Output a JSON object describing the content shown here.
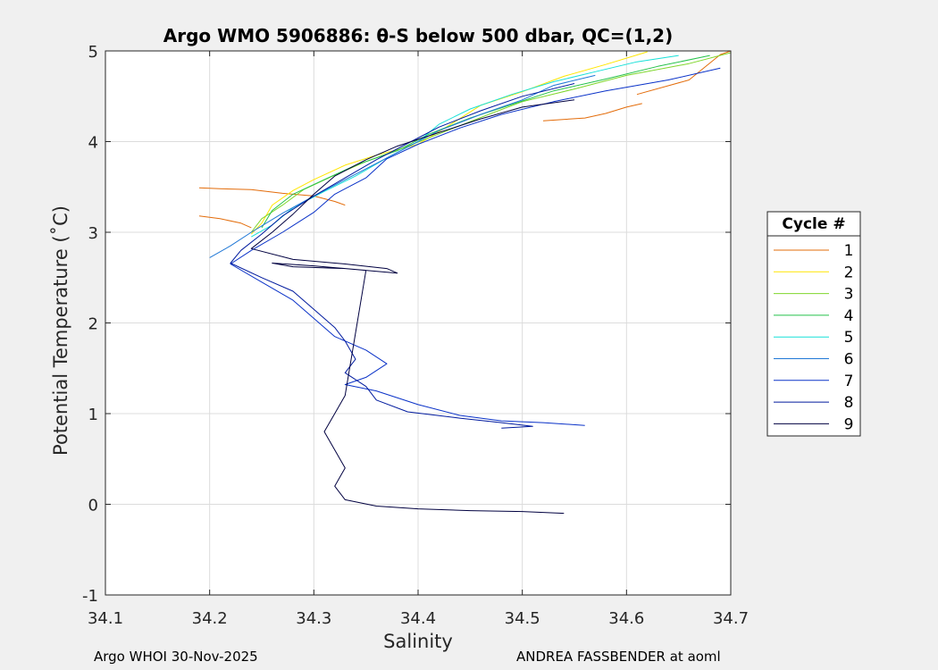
{
  "chart_data": {
    "type": "line",
    "title": "Argo WMO 5906886: θ-S below 500 dbar,  QC=(1,2)",
    "xlabel": "Salinity",
    "ylabel": "Potential Temperature (˚C)",
    "xlim": [
      34.1,
      34.7
    ],
    "ylim": [
      -1,
      5
    ],
    "xticks": [
      "34.1",
      "34.2",
      "34.3",
      "34.4",
      "34.5",
      "34.6",
      "34.7"
    ],
    "yticks": [
      "-1",
      "0",
      "1",
      "2",
      "3",
      "4",
      "5"
    ],
    "grid": true,
    "legend_title": "Cycle #",
    "legend_position": "right",
    "series": [
      {
        "name": "1",
        "color": "#e36c0a",
        "points": [
          [
            34.61,
            4.52
          ],
          [
            34.66,
            4.68
          ],
          [
            34.69,
            4.96
          ],
          [
            34.7,
            5.0
          ]
        ]
      },
      {
        "name": "1",
        "color": "#e36c0a",
        "points": [
          [
            34.52,
            4.23
          ],
          [
            34.56,
            4.26
          ],
          [
            34.58,
            4.31
          ],
          [
            34.6,
            4.38
          ],
          [
            34.615,
            4.42
          ]
        ]
      },
      {
        "name": "1",
        "color": "#e36c0a",
        "points": [
          [
            34.19,
            3.49
          ],
          [
            34.21,
            3.48
          ],
          [
            34.24,
            3.47
          ],
          [
            34.27,
            3.43
          ],
          [
            34.3,
            3.4
          ],
          [
            34.32,
            3.34
          ],
          [
            34.33,
            3.3
          ]
        ]
      },
      {
        "name": "1",
        "color": "#e36c0a",
        "points": [
          [
            34.19,
            3.18
          ],
          [
            34.21,
            3.15
          ],
          [
            34.23,
            3.1
          ],
          [
            34.24,
            3.05
          ]
        ]
      },
      {
        "name": "2",
        "color": "#ffe600",
        "points": [
          [
            34.62,
            4.99
          ],
          [
            34.58,
            4.85
          ],
          [
            34.54,
            4.72
          ],
          [
            34.5,
            4.55
          ],
          [
            34.46,
            4.4
          ],
          [
            34.43,
            4.18
          ],
          [
            34.4,
            3.97
          ],
          [
            34.36,
            3.85
          ],
          [
            34.33,
            3.74
          ],
          [
            34.3,
            3.58
          ],
          [
            34.28,
            3.46
          ],
          [
            34.26,
            3.3
          ],
          [
            34.25,
            3.1
          ],
          [
            34.24,
            2.98
          ]
        ]
      },
      {
        "name": "3",
        "color": "#7fd62b",
        "points": [
          [
            34.7,
            4.98
          ],
          [
            34.66,
            4.86
          ],
          [
            34.6,
            4.73
          ],
          [
            34.55,
            4.58
          ],
          [
            34.5,
            4.44
          ],
          [
            34.47,
            4.31
          ],
          [
            34.43,
            4.13
          ],
          [
            34.39,
            3.95
          ],
          [
            34.35,
            3.78
          ],
          [
            34.32,
            3.63
          ],
          [
            34.29,
            3.47
          ],
          [
            34.27,
            3.3
          ],
          [
            34.25,
            3.15
          ],
          [
            34.24,
            3.0
          ]
        ]
      },
      {
        "name": "4",
        "color": "#25c24a",
        "points": [
          [
            34.68,
            4.95
          ],
          [
            34.63,
            4.83
          ],
          [
            34.58,
            4.69
          ],
          [
            34.53,
            4.56
          ],
          [
            34.49,
            4.41
          ],
          [
            34.45,
            4.26
          ],
          [
            34.41,
            4.08
          ],
          [
            34.38,
            3.9
          ],
          [
            34.34,
            3.74
          ],
          [
            34.31,
            3.58
          ],
          [
            34.28,
            3.42
          ],
          [
            34.26,
            3.24
          ],
          [
            34.25,
            3.05
          ]
        ]
      },
      {
        "name": "5",
        "color": "#17e0d8",
        "points": [
          [
            34.65,
            4.95
          ],
          [
            34.61,
            4.88
          ],
          [
            34.57,
            4.77
          ],
          [
            34.53,
            4.66
          ],
          [
            34.49,
            4.52
          ],
          [
            34.45,
            4.36
          ],
          [
            34.42,
            4.19
          ],
          [
            34.4,
            4.0
          ],
          [
            34.37,
            3.82
          ],
          [
            34.34,
            3.62
          ],
          [
            34.31,
            3.45
          ],
          [
            34.28,
            3.27
          ],
          [
            34.26,
            3.08
          ],
          [
            34.24,
            2.95
          ]
        ]
      },
      {
        "name": "6",
        "color": "#1f77d6",
        "points": [
          [
            34.57,
            4.73
          ],
          [
            34.53,
            4.62
          ],
          [
            34.5,
            4.46
          ],
          [
            34.46,
            4.3
          ],
          [
            34.42,
            4.12
          ],
          [
            34.39,
            3.94
          ],
          [
            34.36,
            3.76
          ],
          [
            34.33,
            3.58
          ],
          [
            34.3,
            3.4
          ],
          [
            34.27,
            3.21
          ],
          [
            34.24,
            3.0
          ],
          [
            34.22,
            2.85
          ],
          [
            34.2,
            2.72
          ]
        ]
      },
      {
        "name": "7",
        "color": "#0a32c8",
        "points": [
          [
            34.69,
            4.81
          ],
          [
            34.64,
            4.68
          ],
          [
            34.58,
            4.56
          ],
          [
            34.53,
            4.44
          ],
          [
            34.48,
            4.3
          ],
          [
            34.44,
            4.15
          ],
          [
            34.4,
            3.97
          ],
          [
            34.37,
            3.81
          ],
          [
            34.35,
            3.6
          ],
          [
            34.32,
            3.42
          ],
          [
            34.3,
            3.22
          ],
          [
            34.27,
            3.0
          ],
          [
            34.24,
            2.8
          ],
          [
            34.22,
            2.65
          ],
          [
            34.25,
            2.45
          ],
          [
            34.28,
            2.25
          ],
          [
            34.3,
            2.05
          ],
          [
            34.32,
            1.85
          ],
          [
            34.35,
            1.7
          ],
          [
            34.37,
            1.55
          ],
          [
            34.35,
            1.4
          ],
          [
            34.33,
            1.32
          ],
          [
            34.36,
            1.25
          ],
          [
            34.4,
            1.1
          ],
          [
            34.44,
            0.98
          ],
          [
            34.48,
            0.92
          ],
          [
            34.52,
            0.9
          ],
          [
            34.56,
            0.87
          ]
        ]
      },
      {
        "name": "8",
        "color": "#001a9e",
        "points": [
          [
            34.55,
            4.64
          ],
          [
            34.5,
            4.5
          ],
          [
            34.46,
            4.34
          ],
          [
            34.42,
            4.16
          ],
          [
            34.39,
            3.98
          ],
          [
            34.36,
            3.8
          ],
          [
            34.33,
            3.6
          ],
          [
            34.3,
            3.4
          ],
          [
            34.27,
            3.18
          ],
          [
            34.25,
            2.98
          ],
          [
            34.23,
            2.8
          ],
          [
            34.22,
            2.66
          ],
          [
            34.25,
            2.5
          ],
          [
            34.28,
            2.35
          ],
          [
            34.3,
            2.15
          ],
          [
            34.32,
            1.95
          ],
          [
            34.33,
            1.8
          ],
          [
            34.34,
            1.6
          ],
          [
            34.33,
            1.45
          ],
          [
            34.35,
            1.3
          ],
          [
            34.36,
            1.15
          ],
          [
            34.39,
            1.02
          ],
          [
            34.44,
            0.95
          ],
          [
            34.48,
            0.9
          ],
          [
            34.51,
            0.86
          ],
          [
            34.48,
            0.84
          ]
        ]
      },
      {
        "name": "9",
        "color": "#000040",
        "points": [
          [
            34.55,
            4.46
          ],
          [
            34.5,
            4.38
          ],
          [
            34.46,
            4.25
          ],
          [
            34.42,
            4.1
          ],
          [
            34.38,
            3.95
          ],
          [
            34.35,
            3.8
          ],
          [
            34.32,
            3.62
          ],
          [
            34.3,
            3.42
          ],
          [
            34.28,
            3.2
          ],
          [
            34.26,
            3.0
          ],
          [
            34.24,
            2.82
          ],
          [
            34.28,
            2.7
          ],
          [
            34.33,
            2.65
          ],
          [
            34.37,
            2.6
          ],
          [
            34.38,
            2.55
          ],
          [
            34.33,
            2.6
          ],
          [
            34.28,
            2.62
          ],
          [
            34.26,
            2.66
          ],
          [
            34.3,
            2.63
          ],
          [
            34.35,
            2.58
          ],
          [
            34.33,
            1.2
          ],
          [
            34.32,
            1.0
          ],
          [
            34.31,
            0.8
          ],
          [
            34.32,
            0.6
          ],
          [
            34.33,
            0.4
          ],
          [
            34.32,
            0.2
          ],
          [
            34.33,
            0.05
          ],
          [
            34.36,
            -0.02
          ],
          [
            34.4,
            -0.05
          ],
          [
            34.45,
            -0.07
          ],
          [
            34.5,
            -0.08
          ],
          [
            34.54,
            -0.1
          ]
        ]
      }
    ]
  },
  "footer": {
    "left": "Argo WHOI 30-Nov-2025",
    "right": "ANDREA FASSBENDER at aoml"
  }
}
